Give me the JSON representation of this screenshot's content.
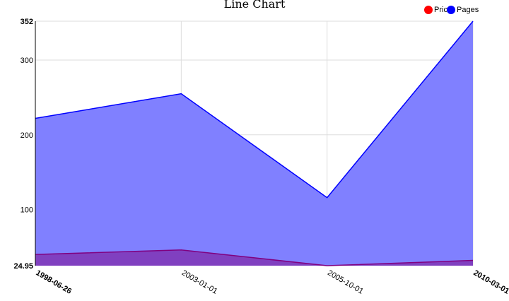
{
  "chart_data": {
    "type": "area",
    "title": "Line Chart",
    "x": [
      "1998-06-26",
      "2003-01-01",
      "2005-10-01",
      "2010-03-01"
    ],
    "ylim": [
      24.95,
      352
    ],
    "y_ticks": [
      {
        "label": "24.95",
        "value": 24.95,
        "bold": true
      },
      {
        "label": "100",
        "value": 100,
        "bold": false
      },
      {
        "label": "200",
        "value": 200,
        "bold": false
      },
      {
        "label": "300",
        "value": 300,
        "bold": false
      },
      {
        "label": "352",
        "value": 352,
        "bold": true
      }
    ],
    "x_ticks_bold": [
      true,
      false,
      false,
      true
    ],
    "grid": true,
    "legend_position": "top-right",
    "series": [
      {
        "name": "Pages",
        "values": [
          222,
          255,
          116,
          352
        ],
        "color": "#0000ff",
        "fill": "#8080ff"
      },
      {
        "name": "Price",
        "values": [
          39.95,
          45.99,
          24.95,
          31.99
        ],
        "color": "#800080",
        "fill": "#8040c0"
      }
    ],
    "legend": [
      {
        "name": "Price",
        "color": "#ff0000"
      },
      {
        "name": "Pages",
        "color": "#0000ff"
      }
    ]
  }
}
